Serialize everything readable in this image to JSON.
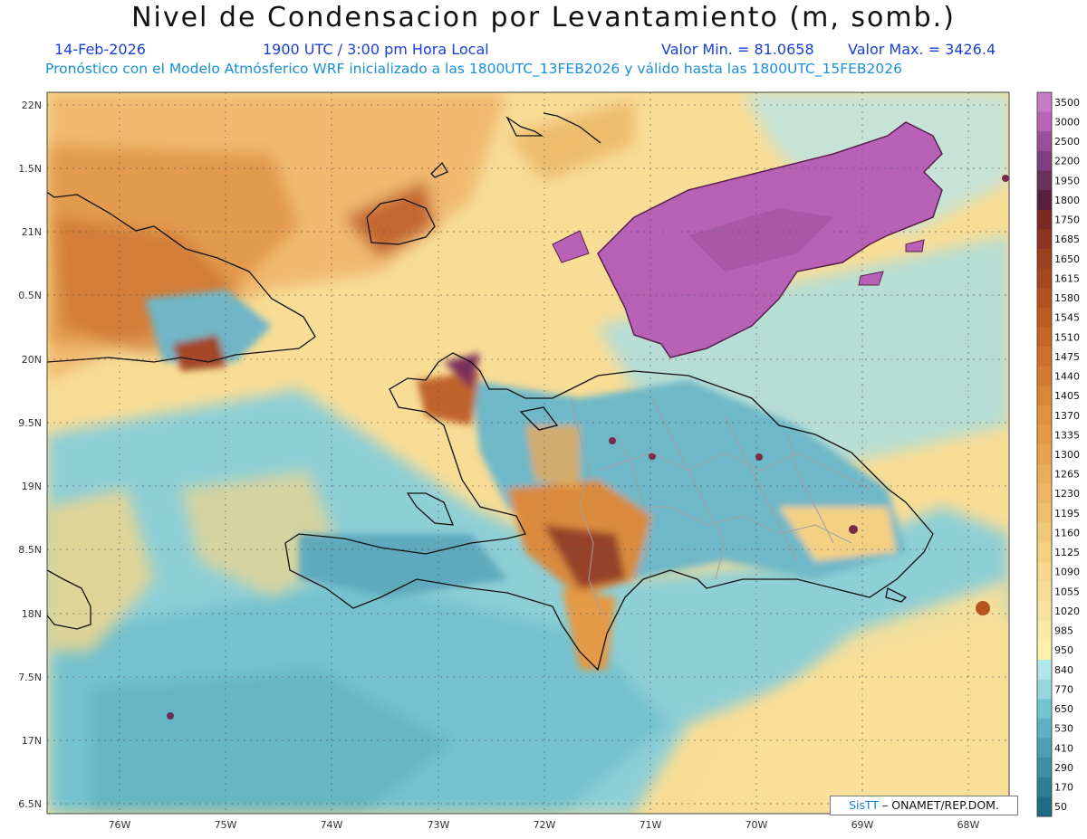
{
  "header": {
    "title": "Nivel de Condensacion por Levantamiento (m, somb.)",
    "date": "14-Feb-2026",
    "time": "1900 UTC / 3:00 pm Hora Local",
    "min_value": "Valor Min. = 81.0658",
    "max_value": "Valor Max. = 3426.4",
    "forecast_note": "Pronóstico con el Modelo Atmósferico WRF inicializado a las 1800UTC_13FEB2026 y válido hasta las  1800UTC_15FEB2026"
  },
  "axes": {
    "lat_labels": [
      "22N",
      "1.5N",
      "21N",
      "0.5N",
      "20N",
      "9.5N",
      "19N",
      "8.5N",
      "18N",
      "7.5N",
      "17N",
      "6.5N"
    ],
    "lon_labels": [
      "76W",
      "75W",
      "74W",
      "73W",
      "72W",
      "71W",
      "70W",
      "69W",
      "68W"
    ]
  },
  "colorbar": {
    "labels": [
      "3500",
      "3000",
      "2500",
      "2200",
      "1950",
      "1800",
      "1750",
      "1685",
      "1650",
      "1615",
      "1580",
      "1545",
      "1510",
      "1475",
      "1440",
      "1405",
      "1370",
      "1335",
      "1300",
      "1265",
      "1230",
      "1195",
      "1160",
      "1125",
      "1090",
      "1055",
      "1020",
      "985",
      "950",
      "840",
      "770",
      "650",
      "530",
      "410",
      "290",
      "170",
      "50"
    ],
    "colors": [
      "#c77ac7",
      "#b964b9",
      "#9a4f9a",
      "#7f3f7f",
      "#6a2f5a",
      "#5a1f3c",
      "#7a2a22",
      "#8e3520",
      "#9c3f1e",
      "#a8471f",
      "#b35220",
      "#bd5b22",
      "#c66526",
      "#cf6f2c",
      "#d67a30",
      "#dc8536",
      "#e0903e",
      "#e49a46",
      "#e8a34f",
      "#ebad58",
      "#eeb662",
      "#f0bf6d",
      "#f2c878",
      "#f4d083",
      "#f6d78e",
      "#f7dd98",
      "#f8e2a1",
      "#fbe9a8",
      "#fdf0ae",
      "#b3e6ea",
      "#94d7df",
      "#76c4d0",
      "#5fb1c0",
      "#4e9fb1",
      "#3f8ea3",
      "#307d94",
      "#216c85"
    ]
  },
  "credit": {
    "brand": "SisTT",
    "org": "– ONAMET/REP.DOM."
  }
}
